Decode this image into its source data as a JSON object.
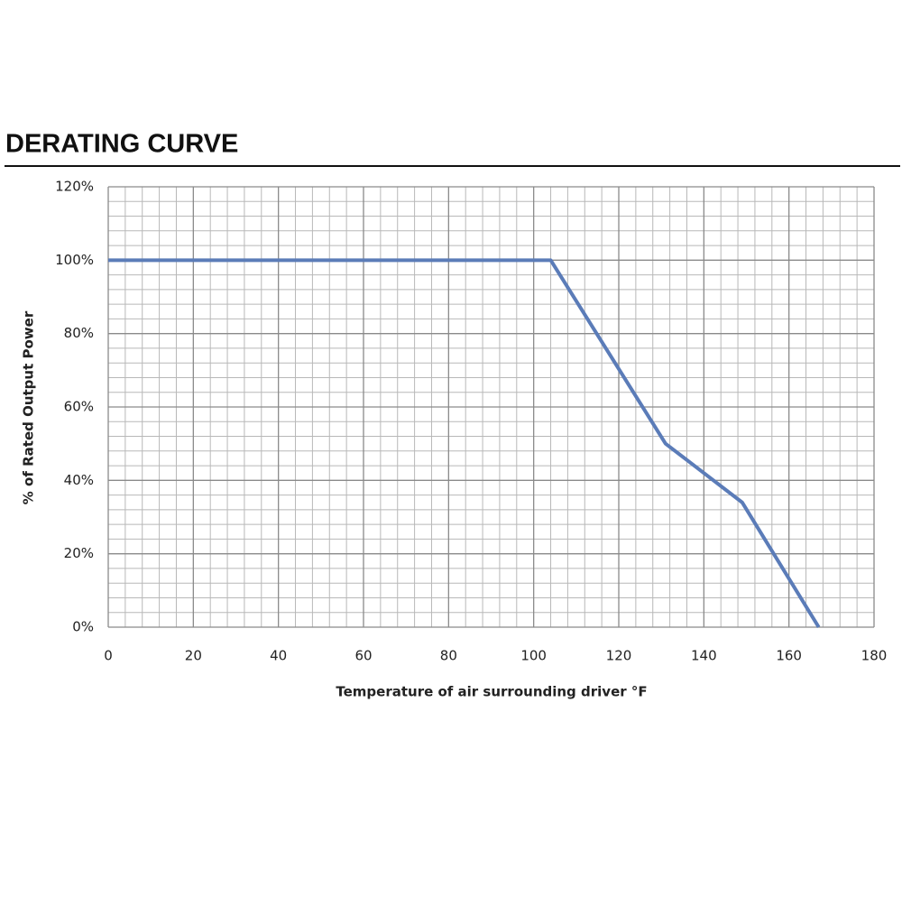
{
  "chart_data": {
    "type": "line",
    "title": "DERATING CURVE",
    "x_label": "Temperature of air surrounding driver °F",
    "y_label": "% of Rated Output Power",
    "x": [
      0,
      104,
      131,
      149,
      167
    ],
    "values": [
      100,
      100,
      50,
      34,
      0
    ],
    "color": "#5b7cb8",
    "xlim": [
      0,
      180
    ],
    "xticks": [
      0,
      20,
      40,
      60,
      80,
      100,
      120,
      140,
      160,
      180
    ],
    "ylim": [
      0,
      120
    ],
    "yticks": [
      {
        "value": 0,
        "label": "0%"
      },
      {
        "value": 20,
        "label": "20%"
      },
      {
        "value": 40,
        "label": "40%"
      },
      {
        "value": 60,
        "label": "60%"
      },
      {
        "value": 80,
        "label": "80%"
      },
      {
        "value": 100,
        "label": "100%"
      },
      {
        "value": 120,
        "label": "120%"
      }
    ],
    "grid": true
  }
}
